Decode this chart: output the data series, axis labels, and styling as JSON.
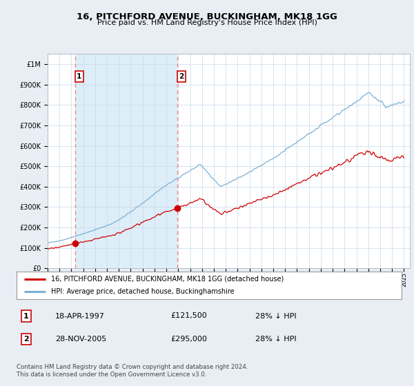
{
  "title": "16, PITCHFORD AVENUE, BUCKINGHAM, MK18 1GG",
  "subtitle": "Price paid vs. HM Land Registry's House Price Index (HPI)",
  "sale1_date": 1997.3,
  "sale1_price": 121500,
  "sale1_label": "1",
  "sale2_date": 2005.91,
  "sale2_price": 295000,
  "sale2_label": "2",
  "hpi_line_color": "#7ab0d4",
  "price_line_color": "#cc0000",
  "sale_marker_color": "#cc0000",
  "dashed_line_color": "#ee8888",
  "background_color": "#e8eef4",
  "plot_bg_color": "#ffffff",
  "highlight_color": "#ddeef8",
  "legend_line1": "16, PITCHFORD AVENUE, BUCKINGHAM, MK18 1GG (detached house)",
  "legend_line2": "HPI: Average price, detached house, Buckinghamshire",
  "table_row1": [
    "1",
    "18-APR-1997",
    "£121,500",
    "28% ↓ HPI"
  ],
  "table_row2": [
    "2",
    "28-NOV-2005",
    "£295,000",
    "28% ↓ HPI"
  ],
  "footer": "Contains HM Land Registry data © Crown copyright and database right 2024.\nThis data is licensed under the Open Government Licence v3.0.",
  "xmin": 1995.0,
  "xmax": 2025.5,
  "ymin": 0,
  "ymax": 1050000,
  "yticks": [
    0,
    100000,
    200000,
    300000,
    400000,
    500000,
    600000,
    700000,
    800000,
    900000,
    1000000
  ],
  "ylabels": [
    "£0",
    "£100K",
    "£200K",
    "£300K",
    "£400K",
    "£500K",
    "£600K",
    "£700K",
    "£800K",
    "£900K",
    "£1M"
  ]
}
